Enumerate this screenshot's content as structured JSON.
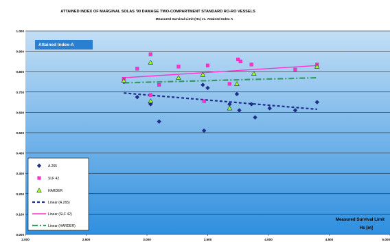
{
  "chart_data": {
    "type": "scatter",
    "title": "ATTAINED INDEX OF MARGINAL SOLAS '90 DAMAGE TWO-COMPARTMENT STANDARD RO-RO VESSELS",
    "subtitle": "Measured Survival Limit (Hs) vs. Attained Index A",
    "inner_label": "Attained Index-A",
    "xlabel_line1": "Measured Survival  Limit",
    "xlabel_line2": "Hs [m]",
    "xlim": [
      2.0,
      5.0
    ],
    "ylim": [
      0.0,
      1.0
    ],
    "x_ticks": [
      "2.000",
      "2.500",
      "3.000",
      "3.500",
      "4.000",
      "4.500",
      "5.000"
    ],
    "y_ticks": [
      "0.000",
      "0.100",
      "0.200",
      "0.300",
      "0.400",
      "0.500",
      "0.600",
      "0.700",
      "0.800",
      "0.900",
      "1.000"
    ],
    "grid": true,
    "legend_position": "bottom-left",
    "series": [
      {
        "name": "A.265",
        "marker": "diamond",
        "color": "#1f2e8c",
        "points": [
          [
            2.81,
            0.75
          ],
          [
            2.92,
            0.675
          ],
          [
            3.03,
            0.64
          ],
          [
            3.03,
            0.645
          ],
          [
            3.1,
            0.555
          ],
          [
            3.46,
            0.735
          ],
          [
            3.47,
            0.51
          ],
          [
            3.5,
            0.72
          ],
          [
            3.68,
            0.64
          ],
          [
            3.74,
            0.69
          ],
          [
            3.76,
            0.61
          ],
          [
            3.86,
            0.64
          ],
          [
            3.89,
            0.575
          ],
          [
            4.01,
            0.62
          ],
          [
            4.22,
            0.61
          ],
          [
            4.4,
            0.65
          ]
        ]
      },
      {
        "name": "SLF 42",
        "marker": "square",
        "color": "#ff33cc",
        "points": [
          [
            2.81,
            0.765
          ],
          [
            2.92,
            0.815
          ],
          [
            3.03,
            0.885
          ],
          [
            3.03,
            0.685
          ],
          [
            3.1,
            0.735
          ],
          [
            3.26,
            0.825
          ],
          [
            3.47,
            0.655
          ],
          [
            3.5,
            0.83
          ],
          [
            3.68,
            0.74
          ],
          [
            3.75,
            0.86
          ],
          [
            3.77,
            0.85
          ],
          [
            3.86,
            0.835
          ],
          [
            4.22,
            0.81
          ],
          [
            4.4,
            0.835
          ]
        ]
      },
      {
        "name": "HARDER",
        "marker": "triangle",
        "color": "#99ff33",
        "points": [
          [
            2.81,
            0.755
          ],
          [
            3.03,
            0.845
          ],
          [
            3.03,
            0.655
          ],
          [
            3.26,
            0.77
          ],
          [
            3.46,
            0.785
          ],
          [
            3.68,
            0.62
          ],
          [
            3.74,
            0.74
          ],
          [
            3.88,
            0.79
          ],
          [
            4.4,
            0.825
          ]
        ]
      }
    ],
    "trendlines": [
      {
        "name": "Linear (A.265)",
        "color": "#1f2e8c",
        "style": "dashed",
        "points": [
          [
            2.81,
            0.695
          ],
          [
            4.4,
            0.615
          ]
        ]
      },
      {
        "name": "Linear (SLF 42)",
        "color": "#ff33cc",
        "style": "solid",
        "points": [
          [
            2.81,
            0.77
          ],
          [
            4.4,
            0.83
          ]
        ]
      },
      {
        "name": "Linear (HARDER)",
        "color": "#339966",
        "style": "dashdot",
        "points": [
          [
            2.81,
            0.745
          ],
          [
            4.4,
            0.77
          ]
        ]
      }
    ]
  }
}
